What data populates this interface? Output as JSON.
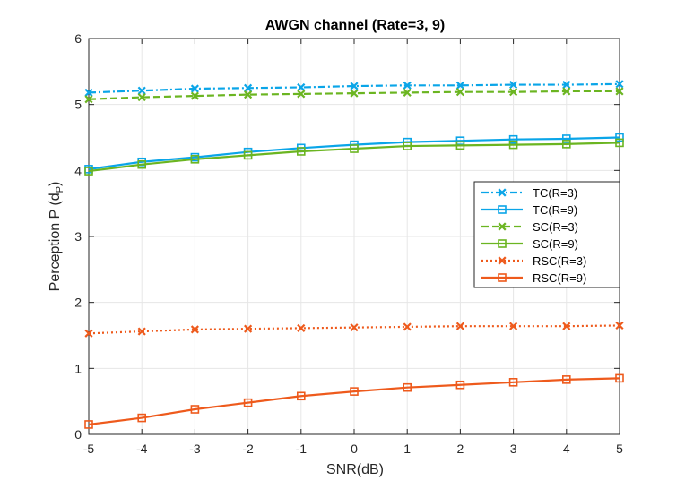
{
  "chart_data": {
    "type": "line",
    "title": "AWGN channel (Rate=3, 9)",
    "xlabel": "SNR(dB)",
    "ylabel_main": "Perception P (d",
    "ylabel_sub": "P",
    "ylabel_close": ")",
    "x": [
      -5,
      -4,
      -3,
      -2,
      -1,
      0,
      1,
      2,
      3,
      4,
      5
    ],
    "xlim": [
      -5,
      5
    ],
    "ylim": [
      0,
      6
    ],
    "xticks": [
      "-5",
      "-4",
      "-3",
      "-2",
      "-1",
      "0",
      "1",
      "2",
      "3",
      "4",
      "5"
    ],
    "yticks": [
      "0",
      "1",
      "2",
      "3",
      "4",
      "5",
      "6"
    ],
    "grid": true,
    "legend_position": "right",
    "series": [
      {
        "name": "TC(R=3)",
        "color": "#0aa5e8",
        "dash": "dashdot",
        "marker": "x",
        "values": [
          5.18,
          5.21,
          5.24,
          5.25,
          5.26,
          5.28,
          5.29,
          5.29,
          5.3,
          5.3,
          5.31
        ]
      },
      {
        "name": "TC(R=9)",
        "color": "#0aa5e8",
        "dash": "solid",
        "marker": "square",
        "values": [
          4.02,
          4.13,
          4.2,
          4.28,
          4.34,
          4.39,
          4.43,
          4.45,
          4.47,
          4.48,
          4.5
        ]
      },
      {
        "name": "SC(R=3)",
        "color": "#6bb521",
        "dash": "dashed",
        "marker": "x",
        "values": [
          5.08,
          5.11,
          5.13,
          5.15,
          5.16,
          5.17,
          5.18,
          5.19,
          5.19,
          5.2,
          5.2
        ]
      },
      {
        "name": "SC(R=9)",
        "color": "#6bb521",
        "dash": "solid",
        "marker": "square",
        "values": [
          3.99,
          4.09,
          4.17,
          4.23,
          4.29,
          4.33,
          4.37,
          4.38,
          4.39,
          4.4,
          4.42
        ]
      },
      {
        "name": "RSC(R=3)",
        "color": "#ee5a1c",
        "dash": "dotted",
        "marker": "x",
        "values": [
          1.53,
          1.56,
          1.59,
          1.6,
          1.61,
          1.62,
          1.63,
          1.64,
          1.64,
          1.64,
          1.65
        ]
      },
      {
        "name": "RSC(R=9)",
        "color": "#ee5a1c",
        "dash": "solid",
        "marker": "square",
        "values": [
          0.15,
          0.25,
          0.38,
          0.48,
          0.58,
          0.65,
          0.71,
          0.75,
          0.79,
          0.83,
          0.85
        ]
      }
    ]
  }
}
